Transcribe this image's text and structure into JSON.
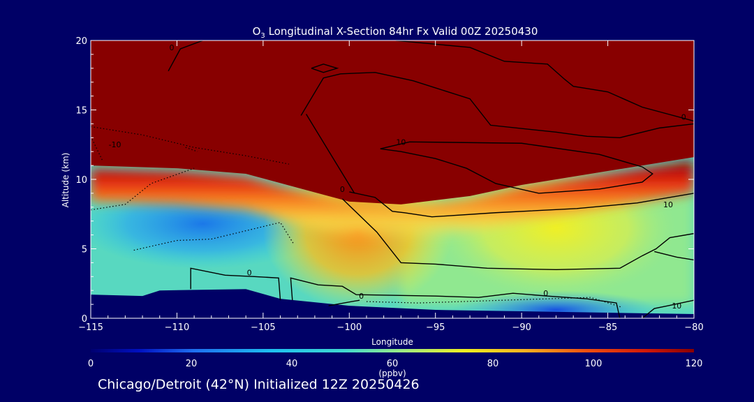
{
  "chart_data": {
    "type": "heatmap",
    "title": "O",
    "title_sub": "3",
    "title_rest": " Longitudinal X-Section 84hr  Fx Valid 00Z 20250430",
    "xlabel": "Longitude",
    "ylabel": "Altitude (km)",
    "xlim": [
      -115,
      -80
    ],
    "ylim": [
      0,
      20
    ],
    "x_ticks": [
      -115,
      -110,
      -105,
      -100,
      -95,
      -90,
      -85,
      -80
    ],
    "x_tick_labels": [
      "−115",
      "−110",
      "−105",
      "−100",
      "−95",
      "−90",
      "−85",
      "−80"
    ],
    "y_ticks": [
      0,
      5,
      10,
      15,
      20
    ],
    "colorbar": {
      "range": [
        0,
        120
      ],
      "ticks": [
        0,
        20,
        40,
        60,
        80,
        100,
        120
      ],
      "tick_labels": [
        "0",
        "20",
        "40",
        "60",
        "80",
        "100",
        "120"
      ],
      "units": "(ppbv)"
    },
    "contour_labels": [
      {
        "text": "0",
        "lon": -110.3,
        "alt": 19.3
      },
      {
        "text": "-10",
        "lon": -113.6,
        "alt": 12.3
      },
      {
        "text": "10",
        "lon": -97.0,
        "alt": 12.5
      },
      {
        "text": "0",
        "lon": -80.6,
        "alt": 14.3
      },
      {
        "text": "10",
        "lon": -81.5,
        "alt": 8.0
      },
      {
        "text": "0",
        "lon": -100.4,
        "alt": 9.1
      },
      {
        "text": "0",
        "lon": -105.8,
        "alt": 3.1
      },
      {
        "text": "0",
        "lon": -88.6,
        "alt": 1.6
      },
      {
        "text": "10",
        "lon": -81.0,
        "alt": 0.7
      },
      {
        "text": "0",
        "lon": -99.3,
        "alt": 1.4
      }
    ],
    "ozone_regions": {
      "stratosphere_min_ppbv": 120,
      "tropopause_alt_west_km": 11.0,
      "tropopause_alt_mid_km": 8.5,
      "tropopause_alt_east_km": 11.5,
      "lower_troposphere_ppbv": 45,
      "mid_troposphere_west_ppbv": 35,
      "mid_troposphere_east_ppbv": 65
    },
    "terrain_alt_km": [
      {
        "lon": -115,
        "alt": 1.7
      },
      {
        "lon": -112,
        "alt": 1.6
      },
      {
        "lon": -111,
        "alt": 2.0
      },
      {
        "lon": -106,
        "alt": 2.1
      },
      {
        "lon": -104,
        "alt": 1.4
      },
      {
        "lon": -100,
        "alt": 0.9
      },
      {
        "lon": -95,
        "alt": 0.6
      },
      {
        "lon": -90,
        "alt": 0.5
      },
      {
        "lon": -85,
        "alt": 0.4
      },
      {
        "lon": -80,
        "alt": 0.3
      }
    ]
  },
  "footer": {
    "text": "Chicago/Detroit (42°N) Initialized 12Z 20250426"
  }
}
